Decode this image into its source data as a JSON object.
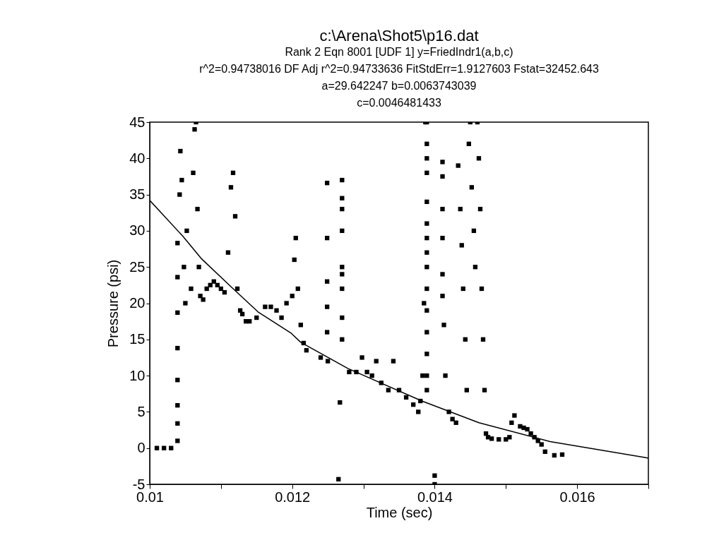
{
  "chart_data": {
    "type": "scatter",
    "title": "c:\\Arena\\Shot5\\p16.dat",
    "subtitle": "Rank 2  Eqn 8001  [UDF 1] y=FriedIndr1(a,b,c)",
    "annotations": [
      "r^2=0.94738016  DF Adj r^2=0.94733636  FitStdErr=1.9127603  Fstat=32452.643",
      "a=29.642247 b=0.0063743039",
      "c=0.0046481433"
    ],
    "xlabel": "Time (sec)",
    "ylabel": "Pressure (psi)",
    "xlim": [
      0.01,
      0.017
    ],
    "ylim": [
      -5,
      45
    ],
    "xticks": [
      0.01,
      {
        "value": 0.011,
        "label": null
      },
      0.012,
      {
        "value": 0.013,
        "label": null
      },
      0.014,
      {
        "value": 0.015,
        "label": null
      },
      0.016,
      {
        "value": 0.017,
        "label": null
      }
    ],
    "yticks": [
      -5,
      0,
      5,
      10,
      15,
      20,
      25,
      30,
      35,
      40,
      45
    ],
    "grid": false,
    "series": [
      {
        "color": "#000000",
        "marker": "square",
        "x": [
          0.0101,
          0.0102,
          0.0103,
          0.01039,
          0.01039,
          0.01039,
          0.01039,
          0.01039,
          0.01039,
          0.01039,
          0.01039,
          0.01042,
          0.01043,
          0.01045,
          0.01048,
          0.0105,
          0.01052,
          0.01058,
          0.01061,
          0.01063,
          0.01065,
          0.01067,
          0.01069,
          0.01071,
          0.01075,
          0.0108,
          0.01085,
          0.0109,
          0.01095,
          0.011,
          0.01105,
          0.0111,
          0.01114,
          0.01117,
          0.0112,
          0.01123,
          0.01127,
          0.0113,
          0.01135,
          0.0114,
          0.0115,
          0.01162,
          0.0117,
          0.01178,
          0.01185,
          0.01192,
          0.012,
          0.01203,
          0.01205,
          0.01208,
          0.01212,
          0.01216,
          0.0122,
          0.0124,
          0.0125,
          0.01249,
          0.01249,
          0.01249,
          0.01249,
          0.01249,
          0.0127,
          0.0127,
          0.0127,
          0.0127,
          0.0127,
          0.0127,
          0.0127,
          0.0127,
          0.0127,
          0.01267,
          0.01265,
          0.0128,
          0.0129,
          0.01298,
          0.01305,
          0.01312,
          0.01318,
          0.01325,
          0.01335,
          0.01342,
          0.0135,
          0.0136,
          0.0137,
          0.01377,
          0.0138,
          0.01383,
          0.01385,
          0.01387,
          0.01389,
          0.01389,
          0.01389,
          0.01389,
          0.01389,
          0.01389,
          0.01389,
          0.01389,
          0.01389,
          0.01389,
          0.01389,
          0.01389,
          0.01389,
          0.01389,
          0.01389,
          0.014,
          0.014,
          0.01411,
          0.01411,
          0.01411,
          0.01411,
          0.01411,
          0.01411,
          0.01413,
          0.01415,
          0.0142,
          0.01425,
          0.0143,
          0.01433,
          0.01436,
          0.01438,
          0.0144,
          0.01443,
          0.01445,
          0.01448,
          0.0145,
          0.01452,
          0.01455,
          0.01457,
          0.0146,
          0.01462,
          0.01464,
          0.01466,
          0.01468,
          0.0147,
          0.01472,
          0.01475,
          0.0148,
          0.0149,
          0.015,
          0.01505,
          0.01508,
          0.01512,
          0.0152,
          0.01525,
          0.0153,
          0.01535,
          0.0154,
          0.01545,
          0.0155,
          0.01555,
          0.01568,
          0.01579
        ],
        "values": [
          0,
          0,
          0,
          1,
          3.4,
          5.9,
          9.4,
          13.8,
          18.7,
          23.6,
          28.3,
          35,
          41,
          37,
          25,
          20,
          30,
          22,
          38,
          44,
          45,
          33,
          25,
          21,
          20.5,
          22,
          22.5,
          23,
          22.5,
          22,
          21.5,
          27,
          36,
          38,
          32,
          22,
          19,
          18.5,
          17.5,
          17.5,
          18,
          19.5,
          19.5,
          19,
          18,
          20,
          21,
          26,
          29,
          22,
          17,
          14.5,
          13.5,
          12.5,
          12,
          36.6,
          29,
          23,
          19.5,
          16,
          37,
          34.5,
          33,
          30,
          25,
          24,
          22,
          18,
          15,
          6.3,
          -4.3,
          10.5,
          10.5,
          12.5,
          10.5,
          10,
          12,
          9,
          8,
          12,
          8,
          7,
          6,
          5,
          6.5,
          10,
          20,
          45,
          45,
          42,
          40,
          38,
          34,
          31,
          29,
          27,
          25,
          22,
          19,
          16,
          13,
          10,
          8,
          -3.8,
          -5,
          39.5,
          37.5,
          33,
          29,
          24,
          21,
          17,
          10,
          5,
          4,
          3.5,
          39,
          33,
          28,
          22,
          15,
          8,
          42,
          45,
          36,
          30,
          25,
          45,
          40,
          33,
          22,
          15,
          8,
          2,
          1.5,
          1.3,
          1.2,
          1.2,
          1.5,
          3.5,
          4.5,
          3,
          2.8,
          2.6,
          2,
          1.5,
          1,
          0.5,
          -0.5,
          -1,
          -0.9
        ]
      },
      {
        "type": "line",
        "color": "#000000",
        "marker": "none",
        "x": [
          0.01,
          0.01046,
          0.01073,
          0.01115,
          0.01152,
          0.01198,
          0.01212,
          0.01278,
          0.01382,
          0.01462,
          0.01562,
          0.01695,
          0.017
        ],
        "values": [
          34.2,
          29.3,
          26.1,
          22.2,
          18.8,
          15.9,
          14.6,
          11,
          6.5,
          3.5,
          0.9,
          -1.3,
          -1.4
        ]
      }
    ]
  }
}
